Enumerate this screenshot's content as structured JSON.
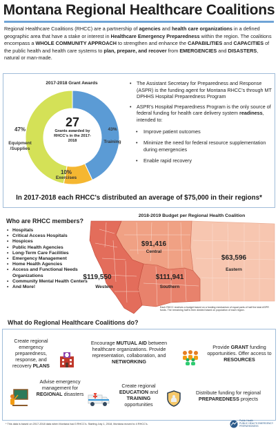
{
  "title": "Montana Regional Healthcare Coalitions",
  "intro": {
    "p1": "Regional Healthcare Coalitions (RHCC) are a partnership of ",
    "b1": "agencies",
    "p2": " and ",
    "b2": "health care organizations",
    "p3": " in a defined geographic area that have a stake or interest in ",
    "b3": "Healthcare Emergency Preparedness",
    "p4": " within the region. The coalitions encompass a ",
    "b4": "WHOLE COMMUNITY APPROACH",
    "p5": " to strengthen and enhance the ",
    "b5": "CAPABILITIES",
    "p6": " and ",
    "b6": "CAPACITIES",
    "p7": " of the public health and health care systems to ",
    "b7": "plan, prepare, and recover",
    "p8": " from ",
    "b8": "EMERGENCIES",
    "p9": " and ",
    "b9": "DISASTERS",
    "p10": ", natural or man-made."
  },
  "chart_data": {
    "type": "pie",
    "title": "2017-2018 Grant Awards",
    "center_value": "27",
    "center_label": "Grants awarded by RHCC's in the 2017-2018",
    "slices": [
      {
        "label": "Training",
        "value": 43,
        "pct_text": "43%",
        "color": "#5b9bd5"
      },
      {
        "label": "Exercises",
        "value": 10,
        "pct_text": "10%",
        "color": "#f5b731"
      },
      {
        "label": "Equipment /Supplies",
        "value": 47,
        "pct_text": "47%",
        "color": "#d4e157"
      }
    ]
  },
  "bullets": {
    "b1": "The Assistant Secretary for Preparedness and Response (ASPR) is the funding agent for Montana RHCC's through MT DPHHS Hospital Preparedness Program",
    "b2_pre": "ASPR's Hospital Preparedness Program is the only source of federal funding for health care delivery system ",
    "b2_bold": "readiness",
    "b2_post": ", intended to:",
    "subs": [
      "Improve patient outcomes",
      "Minimize the need for federal resource supplementation during emergencies",
      "Enable rapid recovery"
    ]
  },
  "avg_line": "In 2017-2018 each RHCC's distributed an average of $75,000 in their regions*",
  "members": {
    "title": "Who are RHCC members?",
    "items": [
      "Hospitals",
      "Critical Access Hospitals",
      "Hospices",
      "Public Health Agencies",
      "Long-Term Care Facilities",
      "Emergency Management",
      "Home Health Agencies",
      "Access and Functional Needs Organizations",
      "Community Mental Health Centers",
      "And More!"
    ]
  },
  "map": {
    "title": "2018-2019 Budget per Regional Health Coalition",
    "regions": [
      {
        "name": "Central",
        "value": "$91,416"
      },
      {
        "name": "Eastern",
        "value": "$63,596"
      },
      {
        "name": "Western",
        "value": "$119,550"
      },
      {
        "name": "Southern",
        "value": "$111,941"
      }
    ],
    "note": "Each RHCC receives a budget based on a funding mechanism of equal parts of half the total ASPR funds. The remaining half is then divided based on population of each region.",
    "colors": {
      "western": "#e36d5b",
      "central": "#f0a184",
      "southern": "#e8826c",
      "eastern": "#f7c6b0",
      "lines": "#c04a3a"
    }
  },
  "activities": {
    "title": "What do Regional Healthcare Coalitions do?",
    "a1": {
      "pre": "Create regional emergency preparedness, response, and recovery ",
      "bold": "PLANS"
    },
    "a2": {
      "pre": "Encourage ",
      "bold1": "MUTUAL AID",
      "mid": " between healthcare organizations. Provide representation, collaboration, and ",
      "bold2": "NETWORKING"
    },
    "a3": {
      "pre": "Provide ",
      "bold1": "GRANT",
      "mid": " funding opportunities. Offer access to ",
      "bold2": "RESOURCES"
    },
    "a4": {
      "pre": "Advise emergency management for ",
      "bold": "REGIONAL",
      "post": " disasters"
    },
    "a5": {
      "pre": "Create regional ",
      "bold1": "EDUCATION",
      "mid": " and ",
      "bold2": "TRAINING",
      "post": " opportunities"
    },
    "a6": {
      "pre": "Distribute funding for regional ",
      "bold": "PREPAREDNESS",
      "post": " projects"
    }
  },
  "footnote": "* This data is based on 2017-2018 data when Montana had 3 RHCC's. Starting July 1, 2018, Montana moved to 4 RHCC's.",
  "logo": {
    "line1": "Public Health",
    "line2": "PUBLIC HEALTH EMERGENCY PREPAREDNESS"
  }
}
